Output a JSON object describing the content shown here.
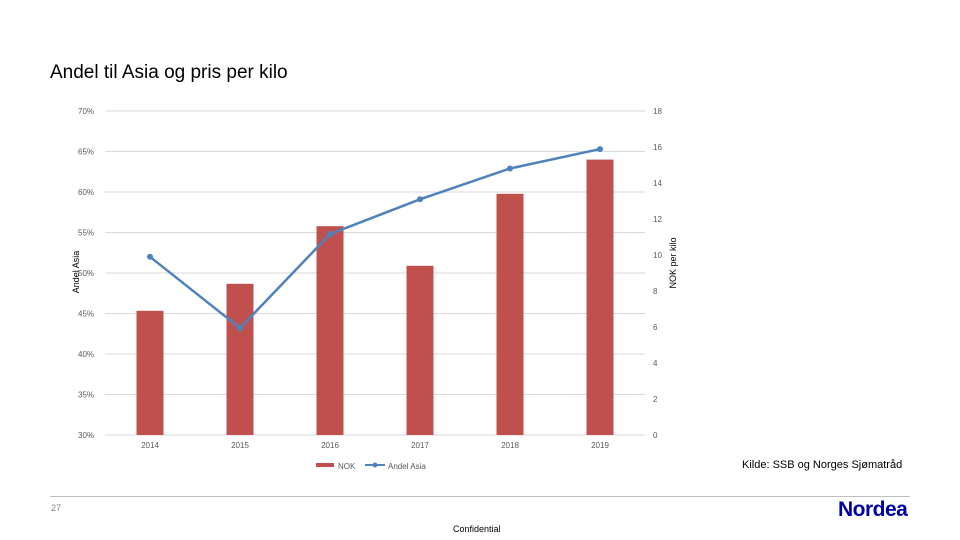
{
  "slide": {
    "source": "Kilde: SSB og Norges Sjømatråd",
    "page_number": "27",
    "confidential": "Confidential",
    "logo": "Nordea",
    "colors": {
      "bar": "#c0504d",
      "line": "#4f81bd",
      "logo": "#0000a0"
    }
  },
  "chart_data": {
    "type": "bar",
    "title": "Andel til Asia og pris per kilo",
    "categories": [
      "2014",
      "2015",
      "2016",
      "2017",
      "2018",
      "2019"
    ],
    "series": [
      {
        "name": "NOK",
        "type": "bar",
        "axis": "right",
        "values": [
          6.9,
          8.4,
          11.6,
          9.4,
          13.4,
          15.3
        ]
      },
      {
        "name": "Andel Asia",
        "type": "line",
        "axis": "left",
        "values": [
          52.0,
          43.2,
          54.8,
          59.1,
          62.9,
          65.3
        ]
      }
    ],
    "ylabel": "Andel Asia",
    "y2label": "NOK per kilo",
    "ylim": [
      30,
      70
    ],
    "y2lim": [
      0,
      18
    ],
    "yticks": [
      "70%",
      "65%",
      "60%",
      "55%",
      "50%",
      "45%",
      "40%",
      "35%",
      "30%"
    ],
    "y2ticks": [
      "18",
      "16",
      "14",
      "12",
      "10",
      "8",
      "6",
      "4",
      "2",
      "0"
    ],
    "grid": true,
    "legend": "bottom"
  }
}
